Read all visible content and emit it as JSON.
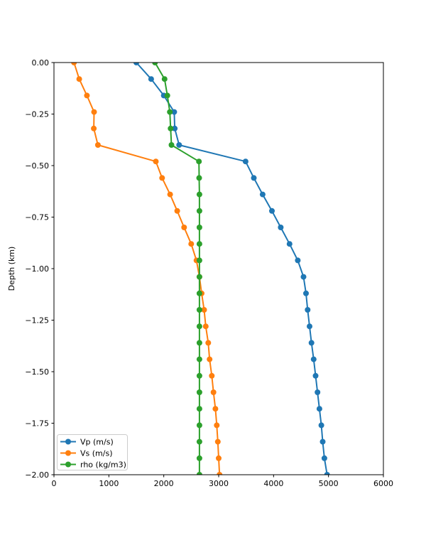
{
  "chart_data": {
    "type": "line",
    "title": "",
    "xlabel": "",
    "ylabel": "Depth (km)",
    "xlim": [
      0,
      6000
    ],
    "ylim": [
      -2.0,
      0.0
    ],
    "xticks": [
      0,
      1000,
      2000,
      3000,
      4000,
      5000,
      6000
    ],
    "xtick_labels": [
      "0",
      "1000",
      "2000",
      "3000",
      "4000",
      "5000",
      "6000"
    ],
    "yticks": [
      0.0,
      -0.25,
      -0.5,
      -0.75,
      -1.0,
      -1.25,
      -1.5,
      -1.75,
      -2.0
    ],
    "ytick_labels": [
      "0.00",
      "−0.25",
      "−0.50",
      "−0.75",
      "−1.00",
      "−1.25",
      "−1.50",
      "−1.75",
      "−2.00"
    ],
    "grid": false,
    "legend_position": "lower left",
    "marker": "circle",
    "depths_km": [
      0.0,
      -0.08,
      -0.16,
      -0.24,
      -0.32,
      -0.4,
      -0.48,
      -0.56,
      -0.64,
      -0.72,
      -0.8,
      -0.88,
      -0.96,
      -1.04,
      -1.12,
      -1.2,
      -1.28,
      -1.36,
      -1.44,
      -1.52,
      -1.6,
      -1.68,
      -1.76,
      -1.84,
      -1.92,
      -2.0
    ],
    "series": [
      {
        "name": "Vp (m/s)",
        "color": "#1f77b4",
        "values": [
          1500,
          1770,
          2000,
          2190,
          2200,
          2280,
          3490,
          3640,
          3800,
          3970,
          4130,
          4290,
          4440,
          4545,
          4590,
          4620,
          4655,
          4690,
          4730,
          4765,
          4800,
          4835,
          4870,
          4895,
          4925,
          4975
        ]
      },
      {
        "name": "Vs (m/s)",
        "color": "#ff7f0e",
        "values": [
          365,
          460,
          600,
          730,
          725,
          800,
          1855,
          1970,
          2115,
          2245,
          2370,
          2500,
          2595,
          2650,
          2690,
          2735,
          2765,
          2810,
          2835,
          2875,
          2905,
          2940,
          2965,
          2985,
          3000,
          3015
        ]
      },
      {
        "name": "rho (kg/m3)",
        "color": "#2ca02c",
        "values": [
          1840,
          2015,
          2065,
          2110,
          2125,
          2140,
          2640,
          2645,
          2650,
          2650,
          2650,
          2650,
          2650,
          2650,
          2650,
          2650,
          2650,
          2650,
          2650,
          2650,
          2650,
          2650,
          2650,
          2650,
          2650,
          2650
        ]
      }
    ]
  }
}
